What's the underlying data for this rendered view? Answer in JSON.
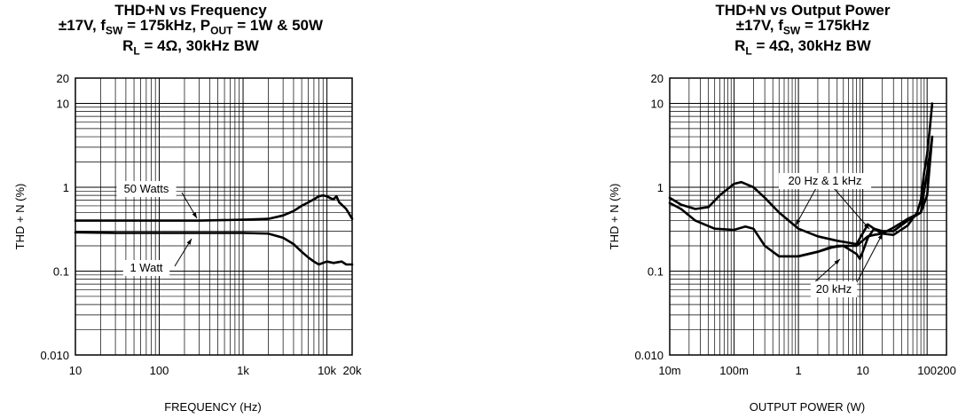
{
  "chart_data": [
    {
      "type": "line",
      "title": {
        "line1": "THD+N vs Frequency",
        "line2_pre": "±17V, f",
        "line2_sub1": "SW",
        "line2_mid": " = 175kHz, P",
        "line2_sub2": "OUT",
        "line2_post": " = 1W & 50W",
        "line3_pre": "R",
        "line3_sub": "L",
        "line3_post": " = 4Ω, 30kHz BW"
      },
      "xlabel": "FREQUENCY (Hz)",
      "ylabel": "THD + N (%)",
      "xscale": "log",
      "yscale": "log",
      "xlim": [
        10,
        20000
      ],
      "ylim": [
        0.01,
        20
      ],
      "x_ticks": [
        {
          "value": 10,
          "label": "10"
        },
        {
          "value": 100,
          "label": "100"
        },
        {
          "value": 1000,
          "label": "1k"
        },
        {
          "value": 10000,
          "label": "10k"
        },
        {
          "value": 20000,
          "label": "20k"
        }
      ],
      "y_ticks": [
        {
          "value": 20,
          "label": "20"
        },
        {
          "value": 10,
          "label": "10"
        },
        {
          "value": 1,
          "label": "1"
        },
        {
          "value": 0.1,
          "label": "0.1"
        },
        {
          "value": 0.01,
          "label": "0.010"
        }
      ],
      "grid": true,
      "series": [
        {
          "name": "50 Watts",
          "points": [
            [
              10,
              0.4
            ],
            [
              30,
              0.4
            ],
            [
              100,
              0.4
            ],
            [
              300,
              0.4
            ],
            [
              1000,
              0.41
            ],
            [
              2000,
              0.42
            ],
            [
              3000,
              0.46
            ],
            [
              4000,
              0.52
            ],
            [
              5000,
              0.6
            ],
            [
              6000,
              0.66
            ],
            [
              7000,
              0.72
            ],
            [
              8000,
              0.78
            ],
            [
              9000,
              0.8
            ],
            [
              10000,
              0.78
            ],
            [
              11000,
              0.74
            ],
            [
              12000,
              0.72
            ],
            [
              13000,
              0.78
            ],
            [
              14000,
              0.66
            ],
            [
              15000,
              0.62
            ],
            [
              17000,
              0.55
            ],
            [
              20000,
              0.42
            ]
          ]
        },
        {
          "name": "1 Watt",
          "points": [
            [
              10,
              0.29
            ],
            [
              30,
              0.285
            ],
            [
              100,
              0.285
            ],
            [
              300,
              0.285
            ],
            [
              1000,
              0.285
            ],
            [
              2000,
              0.28
            ],
            [
              3000,
              0.25
            ],
            [
              4000,
              0.21
            ],
            [
              5000,
              0.17
            ],
            [
              6000,
              0.145
            ],
            [
              7000,
              0.13
            ],
            [
              8000,
              0.12
            ],
            [
              10000,
              0.13
            ],
            [
              12000,
              0.125
            ],
            [
              15000,
              0.13
            ],
            [
              17000,
              0.12
            ],
            [
              20000,
              0.12
            ]
          ]
        }
      ],
      "annotations": [
        {
          "text": "50 Watts"
        },
        {
          "text": "1 Watt"
        }
      ]
    },
    {
      "type": "line",
      "title": {
        "line1": "THD+N vs Output Power",
        "line2_pre": "±17V, f",
        "line2_sub1": "SW",
        "line2_post": " = 175kHz",
        "line3_pre": "R",
        "line3_sub": "L",
        "line3_post": " = 4Ω, 30kHz BW"
      },
      "xlabel": "OUTPUT POWER (W)",
      "ylabel": "THD + N (%)",
      "xscale": "log",
      "yscale": "log",
      "xlim": [
        0.01,
        200
      ],
      "ylim": [
        0.01,
        20
      ],
      "x_ticks": [
        {
          "value": 0.01,
          "label": "10m"
        },
        {
          "value": 0.1,
          "label": "100m"
        },
        {
          "value": 1,
          "label": "1"
        },
        {
          "value": 10,
          "label": "10"
        },
        {
          "value": 100,
          "label": "100"
        },
        {
          "value": 200,
          "label": "200"
        }
      ],
      "y_ticks": [
        {
          "value": 20,
          "label": "20"
        },
        {
          "value": 10,
          "label": "10"
        },
        {
          "value": 1,
          "label": "1"
        },
        {
          "value": 0.1,
          "label": "0.1"
        },
        {
          "value": 0.01,
          "label": "0.010"
        }
      ],
      "grid": true,
      "series": [
        {
          "name": "20 Hz & 1 kHz",
          "points": [
            [
              0.01,
              0.75
            ],
            [
              0.015,
              0.62
            ],
            [
              0.025,
              0.55
            ],
            [
              0.04,
              0.58
            ],
            [
              0.06,
              0.8
            ],
            [
              0.1,
              1.1
            ],
            [
              0.13,
              1.15
            ],
            [
              0.2,
              1.0
            ],
            [
              0.3,
              0.75
            ],
            [
              0.5,
              0.5
            ],
            [
              1,
              0.32
            ],
            [
              2,
              0.26
            ],
            [
              4,
              0.23
            ],
            [
              8,
              0.21
            ],
            [
              12,
              0.36
            ],
            [
              15,
              0.32
            ],
            [
              20,
              0.28
            ],
            [
              30,
              0.27
            ],
            [
              50,
              0.35
            ],
            [
              70,
              0.5
            ],
            [
              80,
              0.7
            ],
            [
              90,
              1.5
            ],
            [
              100,
              2.5
            ],
            [
              110,
              5
            ],
            [
              120,
              10
            ]
          ]
        },
        {
          "name": "20 Hz & 1 kHz",
          "points": [
            [
              0.01,
              0.65
            ],
            [
              0.015,
              0.55
            ],
            [
              0.025,
              0.4
            ],
            [
              0.05,
              0.32
            ],
            [
              0.1,
              0.31
            ],
            [
              0.15,
              0.34
            ],
            [
              0.2,
              0.32
            ],
            [
              0.3,
              0.2
            ],
            [
              0.5,
              0.15
            ],
            [
              1,
              0.15
            ],
            [
              2,
              0.17
            ],
            [
              4,
              0.2
            ],
            [
              8,
              0.2
            ],
            [
              12,
              0.26
            ],
            [
              15,
              0.27
            ],
            [
              20,
              0.28
            ],
            [
              30,
              0.33
            ],
            [
              50,
              0.42
            ],
            [
              80,
              0.5
            ],
            [
              90,
              0.9
            ],
            [
              100,
              1.5
            ],
            [
              110,
              2.5
            ],
            [
              120,
              4
            ]
          ]
        },
        {
          "name": "20 kHz",
          "points": [
            [
              0.5,
              0.15
            ],
            [
              1,
              0.15
            ],
            [
              2,
              0.17
            ],
            [
              3,
              0.19
            ],
            [
              5,
              0.2
            ],
            [
              8,
              0.16
            ],
            [
              9,
              0.14
            ],
            [
              10,
              0.17
            ],
            [
              12,
              0.25
            ],
            [
              15,
              0.32
            ],
            [
              20,
              0.3
            ],
            [
              30,
              0.3
            ],
            [
              50,
              0.4
            ],
            [
              80,
              0.5
            ],
            [
              100,
              0.8
            ],
            [
              120,
              4
            ]
          ]
        }
      ],
      "annotations": [
        {
          "text": "20 Hz & 1 kHz"
        },
        {
          "text": "20 kHz"
        }
      ]
    }
  ]
}
